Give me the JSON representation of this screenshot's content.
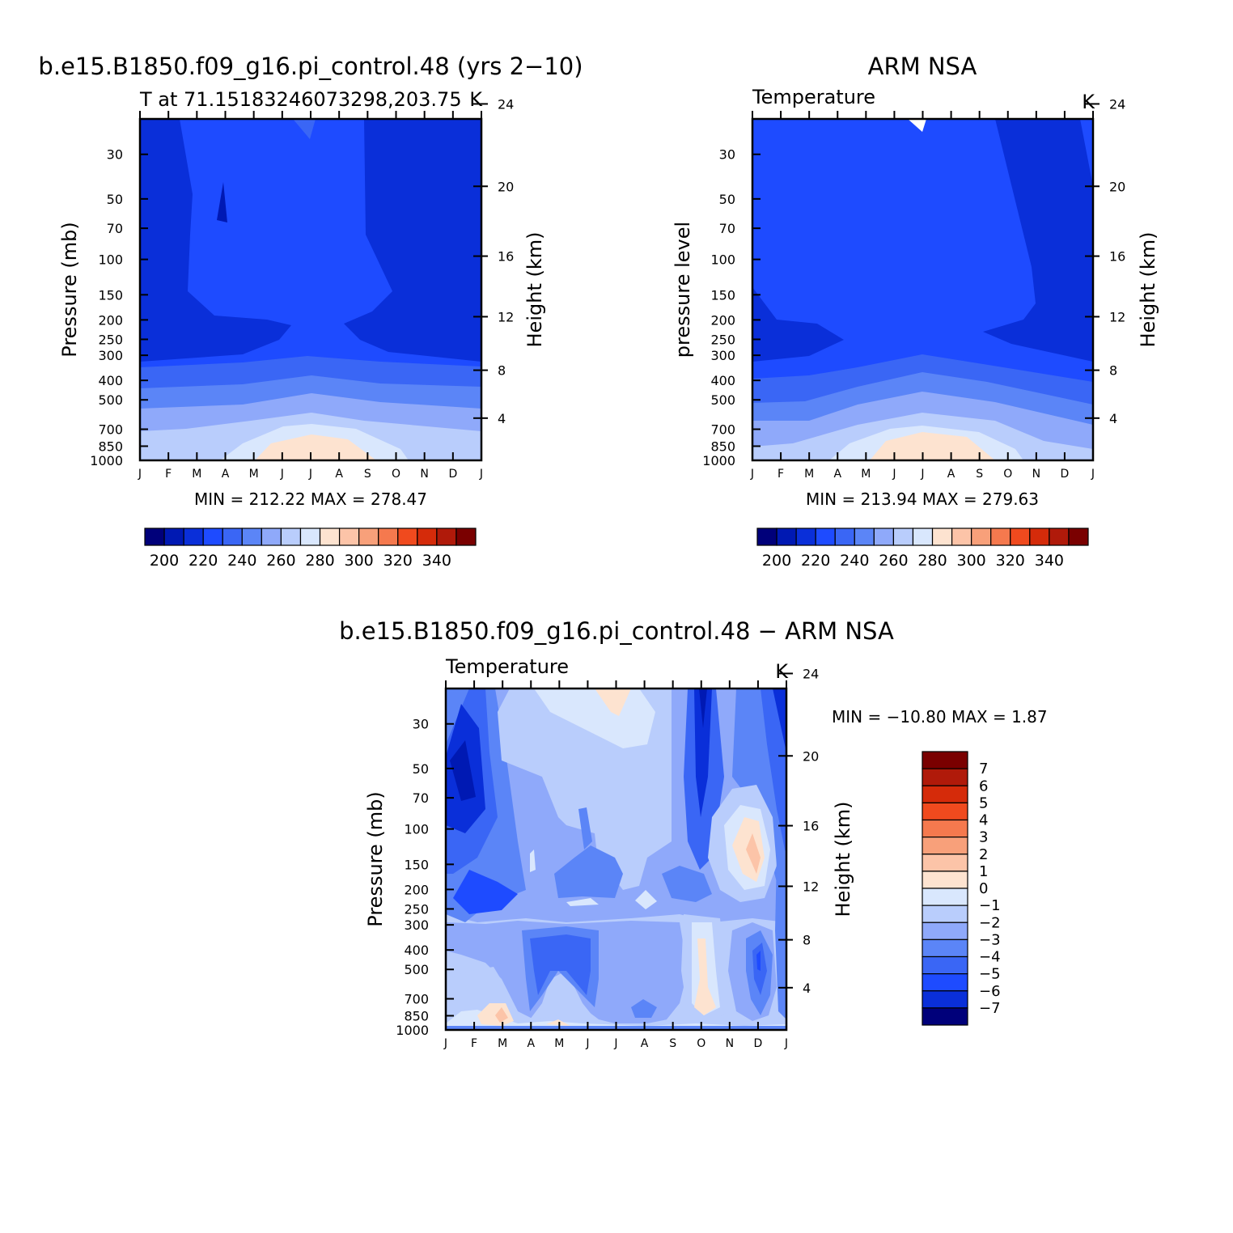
{
  "figure": {
    "panels": [
      {
        "title": "b.e15.B1850.f09_g16.pi_control.48 (yrs 2−10)",
        "subtitle_left": "T at 71.15183246073298,203.75",
        "subtitle_right": "K",
        "ylabel_left": "Pressure (mb)",
        "ylabel_right": "Height (km)",
        "stats": "MIN = 212.22 MAX = 278.47"
      },
      {
        "title": "ARM NSA",
        "subtitle_left": "Temperature",
        "subtitle_right": "K",
        "ylabel_left": "pressure level",
        "ylabel_right": "Height (km)",
        "stats": "MIN = 213.94 MAX = 279.63"
      },
      {
        "title": "b.e15.B1850.f09_g16.pi_control.48 − ARM NSA",
        "subtitle_left": "Temperature",
        "subtitle_right": "K",
        "ylabel_left": "Pressure (mb)",
        "ylabel_right": "Height (km)",
        "stats": "MIN = −10.80 MAX =    1.87"
      }
    ]
  },
  "chart_data": [
    {
      "type": "heatmap",
      "title": "b.e15.B1850.f09_g16.pi_control.48 (yrs 2−10)",
      "subtitle": "T at 71.15183246073298,203.75",
      "units": "K",
      "xlabel": "",
      "ylabel": "Pressure (mb)",
      "ylabel_right": "Height (km)",
      "x_ticks": [
        "J",
        "F",
        "M",
        "A",
        "M",
        "J",
        "J",
        "A",
        "S",
        "O",
        "N",
        "D",
        "J"
      ],
      "y_ticks": [
        30,
        50,
        70,
        100,
        150,
        200,
        250,
        300,
        400,
        500,
        700,
        850,
        1000
      ],
      "y_right_ticks": [
        24,
        20,
        16,
        12,
        8,
        4
      ],
      "ylim": [
        1000,
        20
      ],
      "y_scale": "log",
      "colorbar_levels": [
        200,
        210,
        220,
        230,
        240,
        250,
        260,
        270,
        280,
        290,
        300,
        310,
        320,
        330,
        340
      ],
      "colorbar_labels": [
        "200",
        "220",
        "240",
        "260",
        "280",
        "300",
        "320",
        "340"
      ],
      "colorbar_colors": [
        "#00007a",
        "#0019b3",
        "#0a2fd9",
        "#1e4bff",
        "#3a66f5",
        "#5b85f7",
        "#8fa9fa",
        "#b9cdfc",
        "#d9e7fd",
        "#fde3d0",
        "#fcc4a8",
        "#f8a07a",
        "#f5794e",
        "#f04a1e",
        "#d52b0a",
        "#b01a0a",
        "#7a0000"
      ],
      "min": 212.22,
      "max": 278.47
    },
    {
      "type": "heatmap",
      "title": "ARM NSA",
      "subtitle": "Temperature",
      "units": "K",
      "xlabel": "",
      "ylabel": "pressure level",
      "ylabel_right": "Height (km)",
      "x_ticks": [
        "J",
        "F",
        "M",
        "A",
        "M",
        "J",
        "J",
        "A",
        "S",
        "O",
        "N",
        "D",
        "J"
      ],
      "y_ticks": [
        30,
        50,
        70,
        100,
        150,
        200,
        250,
        300,
        400,
        500,
        700,
        850,
        1000
      ],
      "y_right_ticks": [
        24,
        20,
        16,
        12,
        8,
        4
      ],
      "ylim": [
        1000,
        20
      ],
      "y_scale": "log",
      "colorbar_levels": [
        200,
        210,
        220,
        230,
        240,
        250,
        260,
        270,
        280,
        290,
        300,
        310,
        320,
        330,
        340
      ],
      "colorbar_labels": [
        "200",
        "220",
        "240",
        "260",
        "280",
        "300",
        "320",
        "340"
      ],
      "colorbar_colors": [
        "#00007a",
        "#0019b3",
        "#0a2fd9",
        "#1e4bff",
        "#3a66f5",
        "#5b85f7",
        "#8fa9fa",
        "#b9cdfc",
        "#d9e7fd",
        "#fde3d0",
        "#fcc4a8",
        "#f8a07a",
        "#f5794e",
        "#f04a1e",
        "#d52b0a",
        "#b01a0a",
        "#7a0000"
      ],
      "min": 213.94,
      "max": 279.63
    },
    {
      "type": "heatmap",
      "title": "b.e15.B1850.f09_g16.pi_control.48 − ARM NSA",
      "subtitle": "Temperature",
      "units": "K",
      "xlabel": "",
      "ylabel": "Pressure (mb)",
      "ylabel_right": "Height (km)",
      "x_ticks": [
        "J",
        "F",
        "M",
        "A",
        "M",
        "J",
        "J",
        "A",
        "S",
        "O",
        "N",
        "D",
        "J"
      ],
      "y_ticks": [
        30,
        50,
        70,
        100,
        150,
        200,
        250,
        300,
        400,
        500,
        700,
        850,
        1000
      ],
      "y_right_ticks": [
        24,
        20,
        16,
        12,
        8,
        4
      ],
      "ylim": [
        1000,
        20
      ],
      "y_scale": "log",
      "colorbar_levels": [
        -7,
        -6,
        -5,
        -4,
        -3,
        -2,
        -1,
        0,
        1,
        2,
        3,
        4,
        5,
        6,
        7
      ],
      "colorbar_labels": [
        "7",
        "6",
        "5",
        "4",
        "3",
        "2",
        "1",
        "0",
        "−1",
        "−2",
        "−3",
        "−4",
        "−5",
        "−6",
        "−7"
      ],
      "colorbar_colors": [
        "#7a0000",
        "#b01a0a",
        "#d52b0a",
        "#f04a1e",
        "#f5794e",
        "#f8a07a",
        "#fcc4a8",
        "#fde3d0",
        "#d9e7fd",
        "#b9cdfc",
        "#8fa9fa",
        "#5b85f7",
        "#3a66f5",
        "#1e4bff",
        "#0a2fd9",
        "#00007a"
      ],
      "min": -10.8,
      "max": 1.87
    }
  ]
}
